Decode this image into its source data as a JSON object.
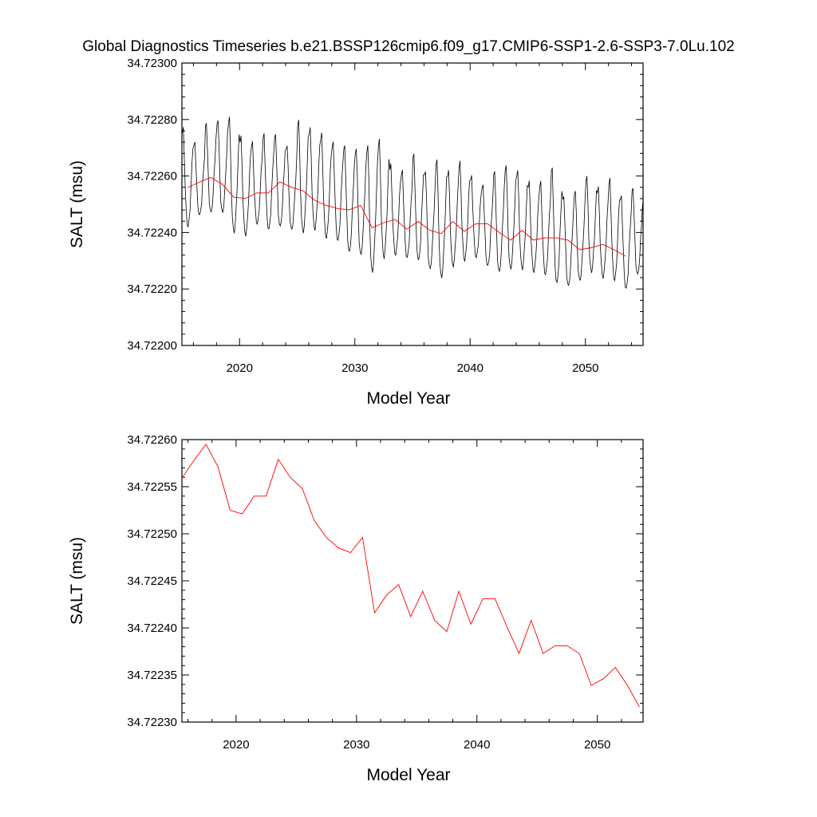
{
  "title": "Global Diagnostics Timeseries b.e21.BSSP126cmip6.f09_g17.CMIP6-SSP1-2.6-SSP3-7.0Lu.102",
  "colors": {
    "monthly": "#000000",
    "annual": "#ff0000"
  },
  "chart_data": [
    {
      "type": "line",
      "name": "monthly-and-annual",
      "xlabel": "Model Year",
      "ylabel": "SALT (msu)",
      "xlim": [
        2015,
        2055
      ],
      "ylim": [
        34.722,
        34.723
      ],
      "xticks": [
        2020,
        2030,
        2040,
        2050
      ],
      "xtick_labels": [
        "2020",
        "2030",
        "2040",
        "2050"
      ],
      "yticks": [
        34.722,
        34.7222,
        34.7224,
        34.7226,
        34.7228,
        34.723
      ],
      "ytick_labels": [
        "34.72200",
        "34.72220",
        "34.72240",
        "34.72260",
        "34.72280",
        "34.72300"
      ],
      "monthly_peaks": [
        34.72277,
        34.72272,
        34.72279,
        34.7228,
        34.72281,
        34.72274,
        34.72272,
        34.72275,
        34.72275,
        34.72271,
        34.7228,
        34.72277,
        34.72275,
        34.72272,
        34.72271,
        34.7227,
        34.72271,
        34.72273,
        34.72264,
        34.72262,
        34.72268,
        34.72262,
        34.72266,
        34.72262,
        34.72265,
        34.7226,
        34.72257,
        34.72262,
        34.72264,
        34.72262,
        34.72258,
        34.72258,
        34.72263,
        34.72253,
        34.72255,
        34.7226,
        34.72256,
        34.72259,
        34.72253,
        34.72256
      ],
      "monthly_troughs": [
        34.72242,
        34.72246,
        34.72247,
        34.72247,
        34.7224,
        34.72239,
        34.72243,
        34.72241,
        34.72242,
        34.72241,
        34.7224,
        34.72241,
        34.72238,
        34.72237,
        34.72233,
        34.72232,
        34.72226,
        34.72231,
        34.72232,
        34.72231,
        34.7223,
        34.72227,
        34.72224,
        34.72228,
        34.7223,
        34.72231,
        34.72228,
        34.72226,
        34.72227,
        34.72227,
        34.72226,
        34.72225,
        34.72222,
        34.72221,
        34.72223,
        34.72226,
        34.72224,
        34.72223,
        34.7222,
        34.72225
      ],
      "series": [
        {
          "name": "annual",
          "x": [
            2015.5,
            2016.5,
            2017.5,
            2018.5,
            2019.5,
            2020.5,
            2021.5,
            2022.5,
            2023.5,
            2024.5,
            2025.5,
            2026.5,
            2027.5,
            2028.5,
            2029.5,
            2030.5,
            2031.5,
            2032.5,
            2033.5,
            2034.5,
            2035.5,
            2036.5,
            2037.5,
            2038.5,
            2039.5,
            2040.5,
            2041.5,
            2042.5,
            2043.5,
            2044.5,
            2045.5,
            2046.5,
            2047.5,
            2048.5,
            2049.5,
            2050.5,
            2051.5,
            2052.5,
            2053.5
          ],
          "values": [
            34.722559,
            34.722578,
            34.722595,
            34.722571,
            34.722525,
            34.722521,
            34.72254,
            34.72254,
            34.722579,
            34.72256,
            34.722548,
            34.722514,
            34.722496,
            34.722485,
            34.72248,
            34.722496,
            34.722416,
            34.722435,
            34.722446,
            34.722412,
            34.722439,
            34.722408,
            34.722396,
            34.722439,
            34.722404,
            34.722431,
            34.722431,
            34.722401,
            34.722373,
            34.722408,
            34.722373,
            34.722381,
            34.722381,
            34.722373,
            34.722339,
            34.722346,
            34.722358,
            34.722339,
            34.722316
          ]
        }
      ]
    },
    {
      "type": "line",
      "name": "annual-only",
      "xlabel": "Model Year",
      "ylabel": "SALT (msu)",
      "xlim": [
        2015.5,
        2053.8
      ],
      "ylim": [
        34.7223,
        34.7226
      ],
      "xticks": [
        2020,
        2030,
        2040,
        2050
      ],
      "xtick_labels": [
        "2020",
        "2030",
        "2040",
        "2050"
      ],
      "yticks": [
        34.7223,
        34.72235,
        34.7224,
        34.72245,
        34.7225,
        34.72255,
        34.7226
      ],
      "ytick_labels": [
        "34.72230",
        "34.72235",
        "34.72240",
        "34.72245",
        "34.72250",
        "34.72255",
        "34.72260"
      ],
      "series": [
        {
          "name": "annual",
          "x": [
            2015.5,
            2016.5,
            2017.5,
            2018.5,
            2019.5,
            2020.5,
            2021.5,
            2022.5,
            2023.5,
            2024.5,
            2025.5,
            2026.5,
            2027.5,
            2028.5,
            2029.5,
            2030.5,
            2031.5,
            2032.5,
            2033.5,
            2034.5,
            2035.5,
            2036.5,
            2037.5,
            2038.5,
            2039.5,
            2040.5,
            2041.5,
            2042.5,
            2043.5,
            2044.5,
            2045.5,
            2046.5,
            2047.5,
            2048.5,
            2049.5,
            2050.5,
            2051.5,
            2052.5,
            2053.5
          ],
          "values": [
            34.722559,
            34.722578,
            34.722595,
            34.722571,
            34.722525,
            34.722521,
            34.72254,
            34.72254,
            34.722579,
            34.72256,
            34.722548,
            34.722514,
            34.722496,
            34.722485,
            34.72248,
            34.722496,
            34.722416,
            34.722435,
            34.722446,
            34.722412,
            34.722439,
            34.722408,
            34.722396,
            34.722439,
            34.722404,
            34.722431,
            34.722431,
            34.722401,
            34.722373,
            34.722408,
            34.722373,
            34.722381,
            34.722381,
            34.722373,
            34.722339,
            34.722346,
            34.722358,
            34.722339,
            34.722316
          ]
        }
      ]
    }
  ]
}
